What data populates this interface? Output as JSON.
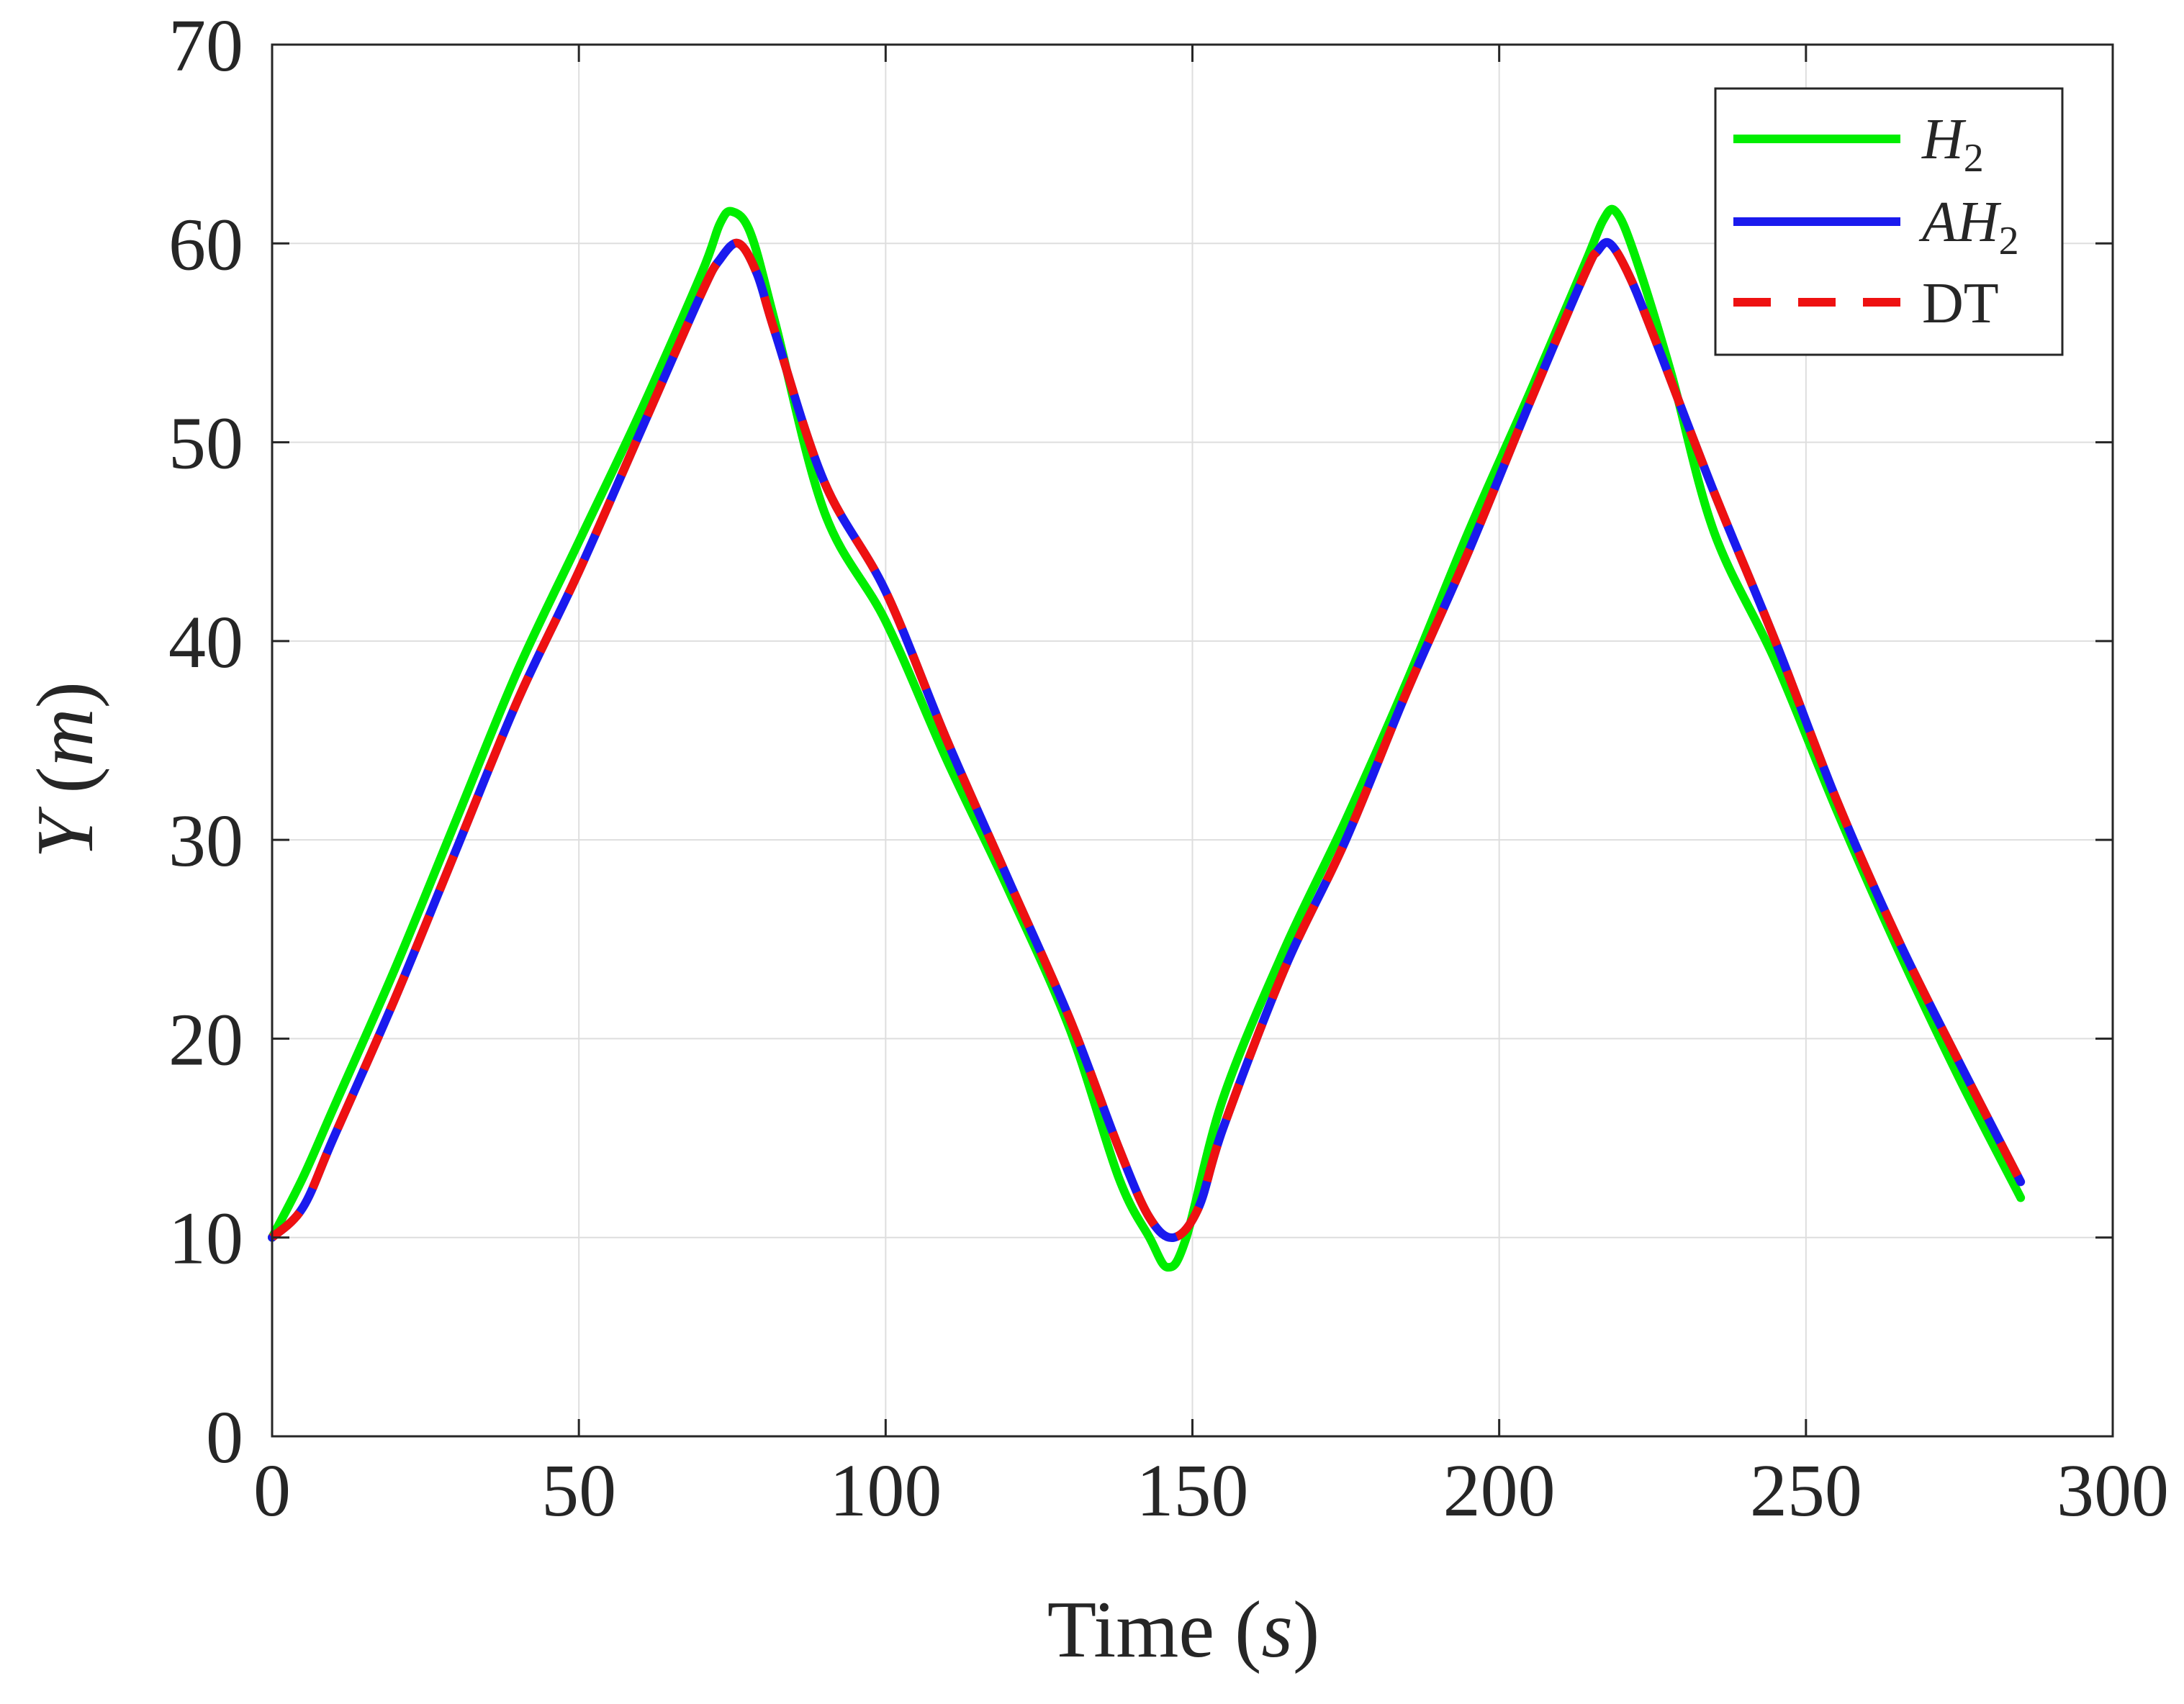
{
  "chart_data": {
    "type": "line",
    "xlabel": {
      "prefix": "Time (",
      "var": "s",
      "suffix": ")"
    },
    "ylabel": {
      "var": "Y",
      "prefix": " (",
      "unit": "m",
      "suffix": ")"
    },
    "xlim": [
      0,
      300
    ],
    "ylim": [
      0,
      70
    ],
    "xticks": [
      0,
      50,
      100,
      150,
      200,
      250,
      300
    ],
    "yticks": [
      0,
      10,
      20,
      30,
      40,
      50,
      60,
      70
    ],
    "grid": true,
    "legend_position": "top-right",
    "series": [
      {
        "name": "H2",
        "label_main": "H",
        "label_sub": "2",
        "color": "#00ee00",
        "style": "solid",
        "x": [
          0,
          5,
          10,
          20,
          30,
          40,
          50,
          60,
          70,
          73,
          75,
          78,
          82,
          90,
          100,
          110,
          120,
          130,
          138,
          143,
          146,
          149,
          155,
          165,
          175,
          185,
          195,
          205,
          214,
          217,
          219,
          222,
          228,
          235,
          245,
          255,
          265,
          275,
          285
        ],
        "y": [
          10,
          13,
          16.5,
          23.5,
          31,
          38.5,
          45,
          51.5,
          58.5,
          61,
          61.6,
          60.5,
          56,
          46.5,
          41,
          34,
          27.5,
          20.5,
          13,
          10,
          8.5,
          10,
          17,
          24.5,
          31,
          38,
          45.5,
          52.5,
          59,
          61.2,
          61.6,
          59.5,
          53.5,
          45.5,
          39,
          31.5,
          24.5,
          18,
          12
        ]
      },
      {
        "name": "AH2",
        "label_main": "AH",
        "label_sub": "2",
        "color": "#1a1aee",
        "style": "solid",
        "x": [
          0,
          5,
          10,
          20,
          30,
          40,
          50,
          60,
          70,
          73,
          76,
          79,
          82,
          90,
          100,
          110,
          120,
          130,
          138,
          143,
          147,
          151,
          155,
          165,
          175,
          185,
          195,
          205,
          214,
          216,
          218,
          221,
          225,
          235,
          245,
          255,
          265,
          275,
          285
        ],
        "y": [
          10,
          11.5,
          15,
          22,
          29.5,
          37,
          43.5,
          50.5,
          57.5,
          59.2,
          60,
          58.5,
          55.5,
          48,
          42.5,
          35,
          28,
          21,
          14.5,
          11,
          10,
          11.5,
          15.5,
          23.5,
          30,
          37.5,
          44.5,
          52,
          58.5,
          59.6,
          60,
          58.5,
          55.5,
          47.5,
          40,
          32,
          25,
          18.8,
          12.8
        ]
      },
      {
        "name": "DT",
        "label_main": "DT",
        "label_sub": "",
        "color": "#ee1111",
        "style": "dashed",
        "x": [
          0,
          5,
          10,
          20,
          30,
          40,
          50,
          60,
          70,
          73,
          76,
          79,
          82,
          90,
          100,
          110,
          120,
          130,
          138,
          143,
          147,
          151,
          155,
          165,
          175,
          185,
          195,
          205,
          214,
          216,
          218,
          221,
          225,
          235,
          245,
          255,
          265,
          275,
          285
        ],
        "y": [
          10,
          11.5,
          15,
          22,
          29.5,
          37,
          43.5,
          50.5,
          57.5,
          59.2,
          60,
          58.5,
          55.5,
          48,
          42.5,
          35,
          28,
          21,
          14.5,
          11,
          10,
          11.5,
          15.5,
          23.5,
          30,
          37.5,
          44.5,
          52,
          58.5,
          59.6,
          60,
          58.5,
          55.5,
          47.5,
          40,
          32,
          25,
          18.8,
          12.8
        ]
      }
    ]
  }
}
